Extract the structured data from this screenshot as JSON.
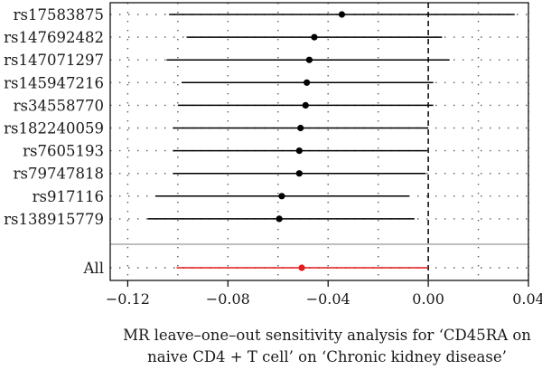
{
  "chart_data": {
    "type": "scatter",
    "subtype": "forest-plot",
    "xlabel_lines": [
      "MR leave–one–out sensitivity analysis for ‘CD45RA on",
      "naive CD4 + T cell’ on ‘Chronic kidney disease’"
    ],
    "xlim": [
      -0.127,
      0.04
    ],
    "xticks": [
      -0.12,
      -0.08,
      -0.04,
      0.0,
      0.04
    ],
    "xtick_labels": [
      "−0.12",
      "−0.08",
      "−0.04",
      "0.00",
      "0.04"
    ],
    "reference_line": 0.0,
    "grid": true,
    "snps": [
      {
        "label": "rs17583875",
        "estimate": -0.0345,
        "lower": -0.1035,
        "upper": 0.0345
      },
      {
        "label": "rs147692482",
        "estimate": -0.0455,
        "lower": -0.0965,
        "upper": 0.0055
      },
      {
        "label": "rs147071297",
        "estimate": -0.0475,
        "lower": -0.1045,
        "upper": 0.0085
      },
      {
        "label": "rs145947216",
        "estimate": -0.0485,
        "lower": -0.0985,
        "upper": 0.002
      },
      {
        "label": "rs34558770",
        "estimate": -0.049,
        "lower": -0.1,
        "upper": 0.002
      },
      {
        "label": "rs182240059",
        "estimate": -0.051,
        "lower": -0.102,
        "upper": 0.0
      },
      {
        "label": "rs7605193",
        "estimate": -0.0515,
        "lower": -0.102,
        "upper": -0.0005
      },
      {
        "label": "rs79747818",
        "estimate": -0.0515,
        "lower": -0.102,
        "upper": -0.001
      },
      {
        "label": "rs917116",
        "estimate": -0.0585,
        "lower": -0.109,
        "upper": -0.0075
      },
      {
        "label": "rs138915779",
        "estimate": -0.0595,
        "lower": -0.112,
        "upper": -0.0055
      }
    ],
    "overall": {
      "label": "All",
      "estimate": -0.0505,
      "lower": -0.1005,
      "upper": 0.0
    },
    "colors": {
      "snp": "#000000",
      "overall": "#e41a1c",
      "separator": "#aaaaaa",
      "grid": "#555555",
      "frame": "#000000"
    }
  }
}
